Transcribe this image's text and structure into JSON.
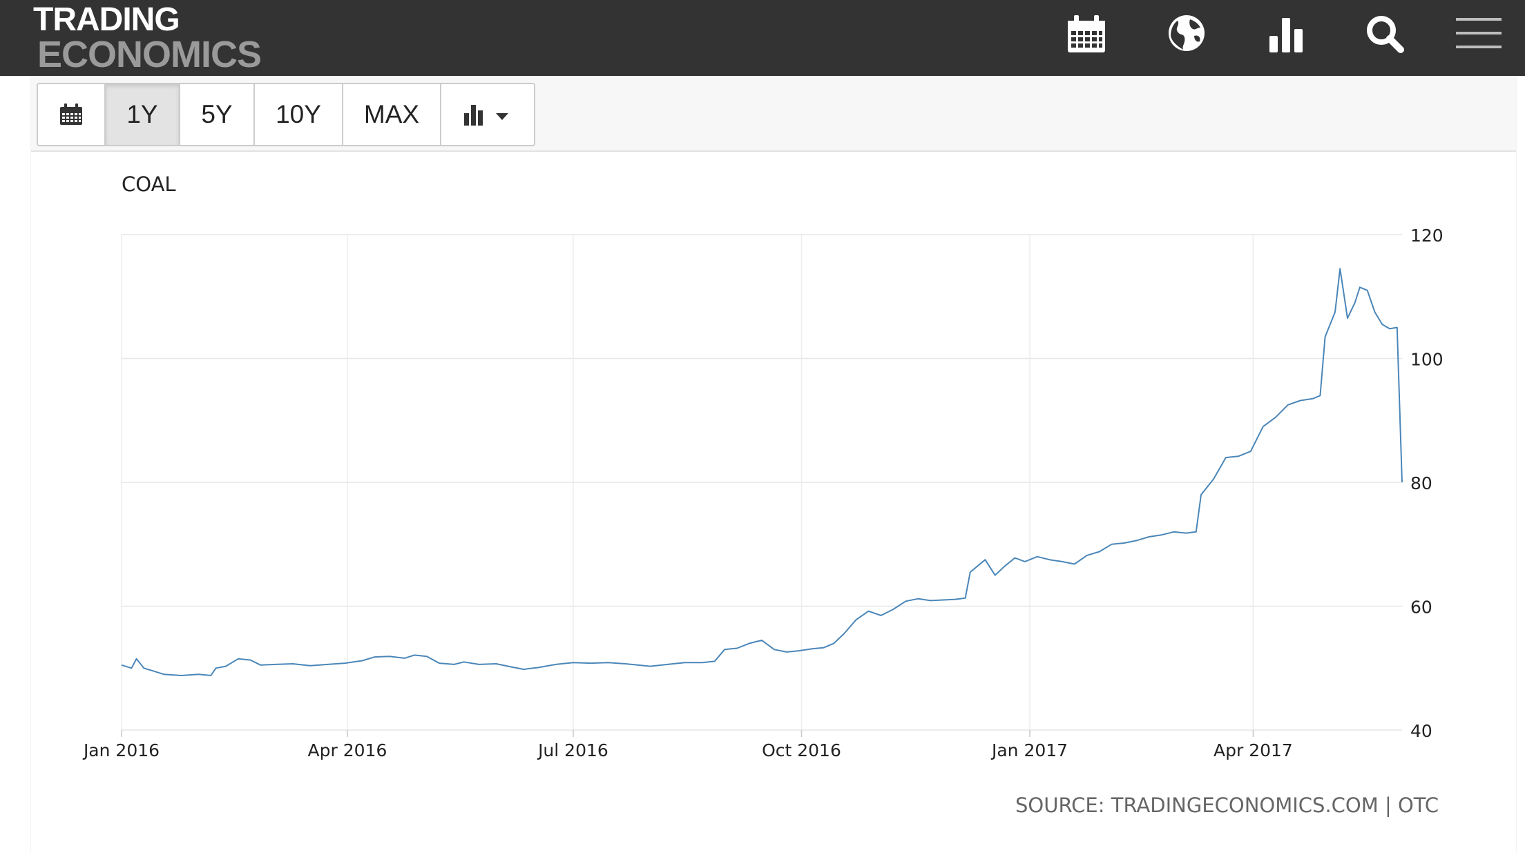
{
  "header": {
    "logo_line1": "TRADING",
    "logo_line2": "ECONOMICS",
    "nav_icons": [
      "calendar-icon",
      "globe-icon",
      "bar-chart-icon",
      "search-icon",
      "menu-icon"
    ]
  },
  "toolbar": {
    "buttons": [
      "1Y",
      "5Y",
      "10Y",
      "MAX"
    ],
    "active": "1Y"
  },
  "source_text": "SOURCE: TRADINGECONOMICS.COM | OTC",
  "colors": {
    "topbar": "#333333",
    "line": "#4a86b8"
  },
  "chart_data": {
    "type": "line",
    "title": "COAL",
    "xlabel": "",
    "ylabel": "",
    "xlim": [
      "2016-01-01",
      "2017-05-31"
    ],
    "ylim": [
      40,
      120
    ],
    "yticks": [
      40,
      60,
      80,
      100,
      120
    ],
    "xtick_labels": [
      "Jan 2016",
      "Apr 2016",
      "Jul 2016",
      "Oct 2016",
      "Jan 2017",
      "Apr 2017"
    ],
    "grid": true,
    "series": [
      {
        "values": [
          [
            "2016-01-01",
            50.5
          ],
          [
            "2016-01-05",
            50.0
          ],
          [
            "2016-01-07",
            51.5
          ],
          [
            "2016-01-10",
            50.0
          ],
          [
            "2016-01-14",
            49.5
          ],
          [
            "2016-01-18",
            49.0
          ],
          [
            "2016-01-25",
            48.8
          ],
          [
            "2016-02-01",
            49.0
          ],
          [
            "2016-02-06",
            48.8
          ],
          [
            "2016-02-08",
            50.0
          ],
          [
            "2016-02-12",
            50.3
          ],
          [
            "2016-02-17",
            51.5
          ],
          [
            "2016-02-22",
            51.3
          ],
          [
            "2016-02-26",
            50.5
          ],
          [
            "2016-03-03",
            50.6
          ],
          [
            "2016-03-10",
            50.7
          ],
          [
            "2016-03-17",
            50.4
          ],
          [
            "2016-03-24",
            50.6
          ],
          [
            "2016-03-31",
            50.8
          ],
          [
            "2016-04-07",
            51.2
          ],
          [
            "2016-04-12",
            51.8
          ],
          [
            "2016-04-18",
            51.9
          ],
          [
            "2016-04-24",
            51.6
          ],
          [
            "2016-04-28",
            52.1
          ],
          [
            "2016-05-03",
            51.9
          ],
          [
            "2016-05-08",
            50.8
          ],
          [
            "2016-05-14",
            50.6
          ],
          [
            "2016-05-18",
            51.0
          ],
          [
            "2016-05-24",
            50.6
          ],
          [
            "2016-05-31",
            50.7
          ],
          [
            "2016-06-06",
            50.2
          ],
          [
            "2016-06-11",
            49.8
          ],
          [
            "2016-06-17",
            50.1
          ],
          [
            "2016-06-24",
            50.6
          ],
          [
            "2016-07-01",
            50.9
          ],
          [
            "2016-07-08",
            50.8
          ],
          [
            "2016-07-15",
            50.9
          ],
          [
            "2016-07-22",
            50.7
          ],
          [
            "2016-07-27",
            50.5
          ],
          [
            "2016-08-01",
            50.3
          ],
          [
            "2016-08-08",
            50.6
          ],
          [
            "2016-08-15",
            50.9
          ],
          [
            "2016-08-22",
            50.9
          ],
          [
            "2016-08-27",
            51.1
          ],
          [
            "2016-08-31",
            53.0
          ],
          [
            "2016-09-05",
            53.2
          ],
          [
            "2016-09-10",
            54.0
          ],
          [
            "2016-09-15",
            54.5
          ],
          [
            "2016-09-20",
            53.0
          ],
          [
            "2016-09-25",
            52.6
          ],
          [
            "2016-09-30",
            52.8
          ],
          [
            "2016-10-05",
            53.1
          ],
          [
            "2016-10-10",
            53.3
          ],
          [
            "2016-10-14",
            54.0
          ],
          [
            "2016-10-18",
            55.5
          ],
          [
            "2016-10-23",
            57.8
          ],
          [
            "2016-10-28",
            59.2
          ],
          [
            "2016-11-02",
            58.5
          ],
          [
            "2016-11-07",
            59.5
          ],
          [
            "2016-11-12",
            60.8
          ],
          [
            "2016-11-17",
            61.2
          ],
          [
            "2016-11-22",
            60.9
          ],
          [
            "2016-11-27",
            61.0
          ],
          [
            "2016-12-02",
            61.1
          ],
          [
            "2016-12-06",
            61.3
          ],
          [
            "2016-12-08",
            65.5
          ],
          [
            "2016-12-11",
            66.5
          ],
          [
            "2016-12-14",
            67.5
          ],
          [
            "2016-12-18",
            65.0
          ],
          [
            "2016-12-22",
            66.5
          ],
          [
            "2016-12-26",
            67.8
          ],
          [
            "2016-12-30",
            67.2
          ],
          [
            "2017-01-04",
            68.0
          ],
          [
            "2017-01-09",
            67.5
          ],
          [
            "2017-01-14",
            67.2
          ],
          [
            "2017-01-19",
            66.8
          ],
          [
            "2017-01-24",
            68.2
          ],
          [
            "2017-01-29",
            68.8
          ],
          [
            "2017-02-03",
            70.0
          ],
          [
            "2017-02-08",
            70.2
          ],
          [
            "2017-02-13",
            70.6
          ],
          [
            "2017-02-18",
            71.2
          ],
          [
            "2017-02-23",
            71.5
          ],
          [
            "2017-02-28",
            72.0
          ],
          [
            "2017-03-05",
            71.8
          ],
          [
            "2017-03-09",
            72.0
          ],
          [
            "2017-03-11",
            78.0
          ],
          [
            "2017-03-16",
            80.5
          ],
          [
            "2017-03-21",
            84.0
          ],
          [
            "2017-03-26",
            84.2
          ],
          [
            "2017-03-31",
            85.0
          ],
          [
            "2017-04-05",
            89.0
          ],
          [
            "2017-04-10",
            90.5
          ],
          [
            "2017-04-15",
            92.5
          ],
          [
            "2017-04-20",
            93.2
          ],
          [
            "2017-04-25",
            93.5
          ],
          [
            "2017-04-28",
            94.0
          ],
          [
            "2017-04-30",
            103.5
          ],
          [
            "2017-05-04",
            107.5
          ],
          [
            "2017-05-06",
            114.5
          ],
          [
            "2017-05-09",
            106.5
          ],
          [
            "2017-05-12",
            109.0
          ],
          [
            "2017-05-14",
            111.5
          ],
          [
            "2017-05-17",
            111.0
          ],
          [
            "2017-05-20",
            107.5
          ],
          [
            "2017-05-23",
            105.5
          ],
          [
            "2017-05-26",
            104.8
          ],
          [
            "2017-05-29",
            105.0
          ],
          [
            "2017-05-31",
            80.0
          ]
        ]
      }
    ]
  }
}
